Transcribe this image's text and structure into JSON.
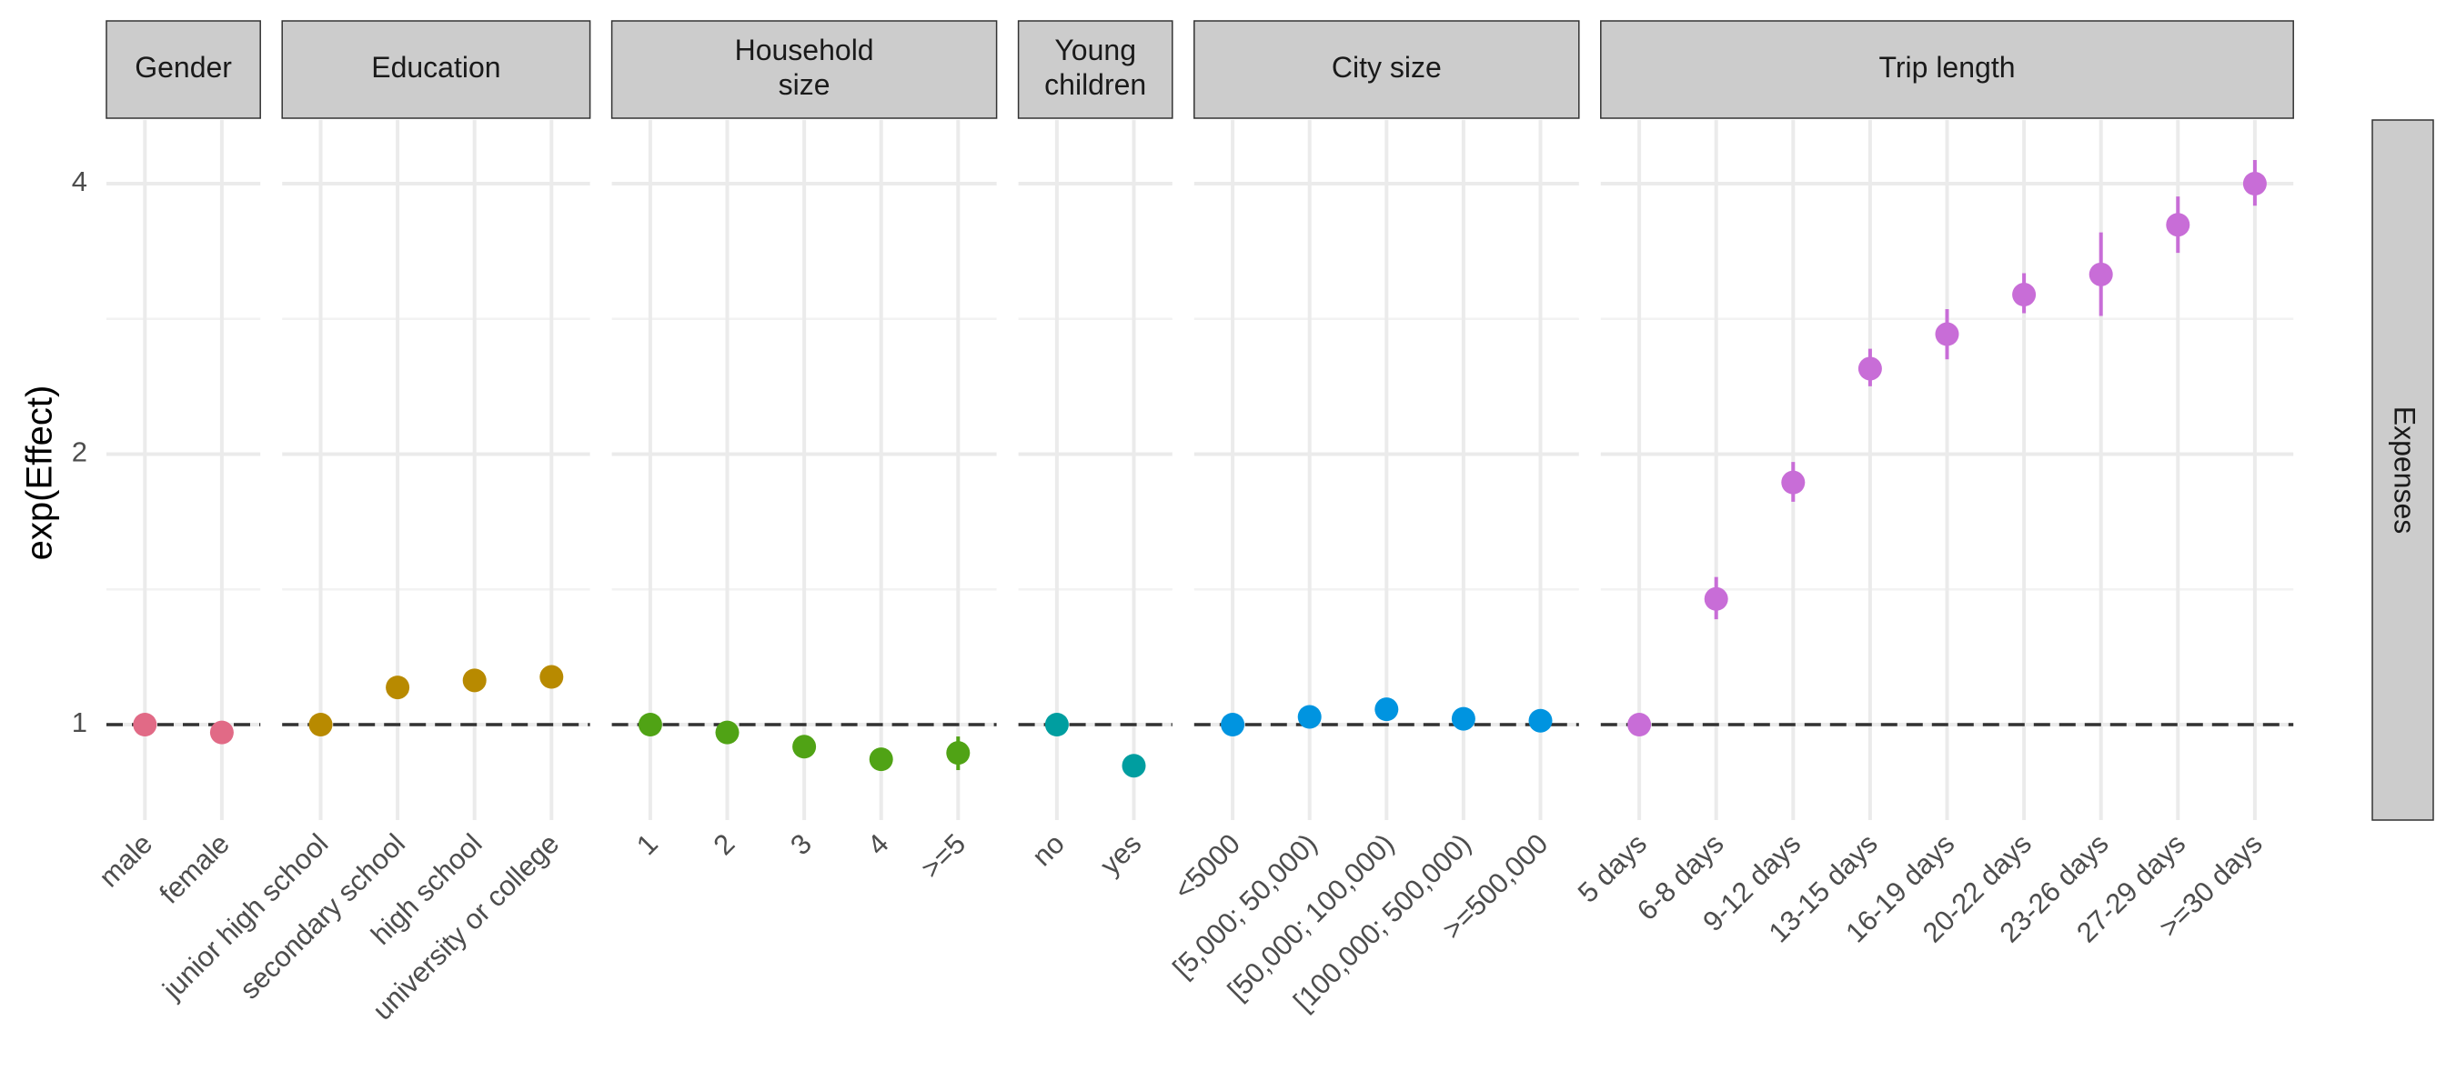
{
  "chart_data": {
    "type": "scatter",
    "subtype": "faceted point-range (dot and error bar) plot",
    "ylabel": "exp(Effect)",
    "y_scale": "log2",
    "ylim": [
      0.82,
      4.6
    ],
    "yticks": [
      1,
      2,
      4
    ],
    "reference_line": {
      "y": 1,
      "style": "dashed"
    },
    "grid": true,
    "row_strip": "Expenses",
    "facets": [
      {
        "title": "Gender",
        "color": "#e16a86",
        "categories": [
          "male",
          "female"
        ],
        "points": [
          {
            "x": "male",
            "y": 1.0,
            "lo": 1.0,
            "hi": 1.0
          },
          {
            "x": "female",
            "y": 0.98,
            "lo": 0.97,
            "hi": 0.99
          }
        ]
      },
      {
        "title": "Education",
        "color": "#b88a00",
        "categories": [
          "junior high school",
          "secondary school",
          "high school",
          "university or college"
        ],
        "points": [
          {
            "x": "junior high school",
            "y": 1.0,
            "lo": 1.0,
            "hi": 1.0
          },
          {
            "x": "secondary school",
            "y": 1.1,
            "lo": 1.09,
            "hi": 1.11
          },
          {
            "x": "high school",
            "y": 1.12,
            "lo": 1.11,
            "hi": 1.13
          },
          {
            "x": "university or college",
            "y": 1.13,
            "lo": 1.12,
            "hi": 1.14
          }
        ]
      },
      {
        "title": "Household\nsize",
        "color": "#50a315",
        "categories": [
          "1",
          "2",
          "3",
          "4",
          ">=5"
        ],
        "points": [
          {
            "x": "1",
            "y": 1.0,
            "lo": 1.0,
            "hi": 1.0
          },
          {
            "x": "2",
            "y": 0.98,
            "lo": 0.97,
            "hi": 0.99
          },
          {
            "x": "3",
            "y": 0.945,
            "lo": 0.935,
            "hi": 0.955
          },
          {
            "x": "4",
            "y": 0.915,
            "lo": 0.905,
            "hi": 0.925
          },
          {
            "x": ">=5",
            "y": 0.93,
            "lo": 0.89,
            "hi": 0.97
          }
        ]
      },
      {
        "title": "Young\nchildren",
        "color": "#009ea0",
        "categories": [
          "no",
          "yes"
        ],
        "points": [
          {
            "x": "no",
            "y": 1.0,
            "lo": 1.0,
            "hi": 1.0
          },
          {
            "x": "yes",
            "y": 0.9,
            "lo": 0.88,
            "hi": 0.92
          }
        ]
      },
      {
        "title": "City size",
        "color": "#0094e0",
        "categories": [
          "<5000",
          "[5,000; 50,000)",
          "[50,000; 100,000)",
          "[100,000; 500,000)",
          ">=500,000"
        ],
        "points": [
          {
            "x": "<5000",
            "y": 1.0,
            "lo": 1.0,
            "hi": 1.0
          },
          {
            "x": "[5,000; 50,000)",
            "y": 1.02,
            "lo": 1.005,
            "hi": 1.035
          },
          {
            "x": "[50,000; 100,000)",
            "y": 1.04,
            "lo": 1.015,
            "hi": 1.065
          },
          {
            "x": "[100,000; 500,000)",
            "y": 1.015,
            "lo": 1.0,
            "hi": 1.03
          },
          {
            "x": ">=500,000",
            "y": 1.01,
            "lo": 0.995,
            "hi": 1.025
          }
        ]
      },
      {
        "title": "Trip length",
        "color": "#c86dd7",
        "categories": [
          "5 days",
          "6-8 days",
          "9-12 days",
          "13-15 days",
          "16-19 days",
          "20-22 days",
          "23-26 days",
          "27-29 days",
          ">=30 days"
        ],
        "points": [
          {
            "x": "5 days",
            "y": 1.0,
            "lo": 1.0,
            "hi": 1.0
          },
          {
            "x": "6-8 days",
            "y": 1.38,
            "lo": 1.31,
            "hi": 1.46
          },
          {
            "x": "9-12 days",
            "y": 1.86,
            "lo": 1.77,
            "hi": 1.96
          },
          {
            "x": "13-15 days",
            "y": 2.49,
            "lo": 2.38,
            "hi": 2.62
          },
          {
            "x": "16-19 days",
            "y": 2.72,
            "lo": 2.55,
            "hi": 2.9
          },
          {
            "x": "20-22 days",
            "y": 3.01,
            "lo": 2.87,
            "hi": 3.18
          },
          {
            "x": "23-26 days",
            "y": 3.17,
            "lo": 2.85,
            "hi": 3.53
          },
          {
            "x": "27-29 days",
            "y": 3.6,
            "lo": 3.35,
            "hi": 3.87
          },
          {
            "x": ">=30 days",
            "y": 4.0,
            "lo": 3.78,
            "hi": 4.25
          }
        ]
      }
    ]
  }
}
